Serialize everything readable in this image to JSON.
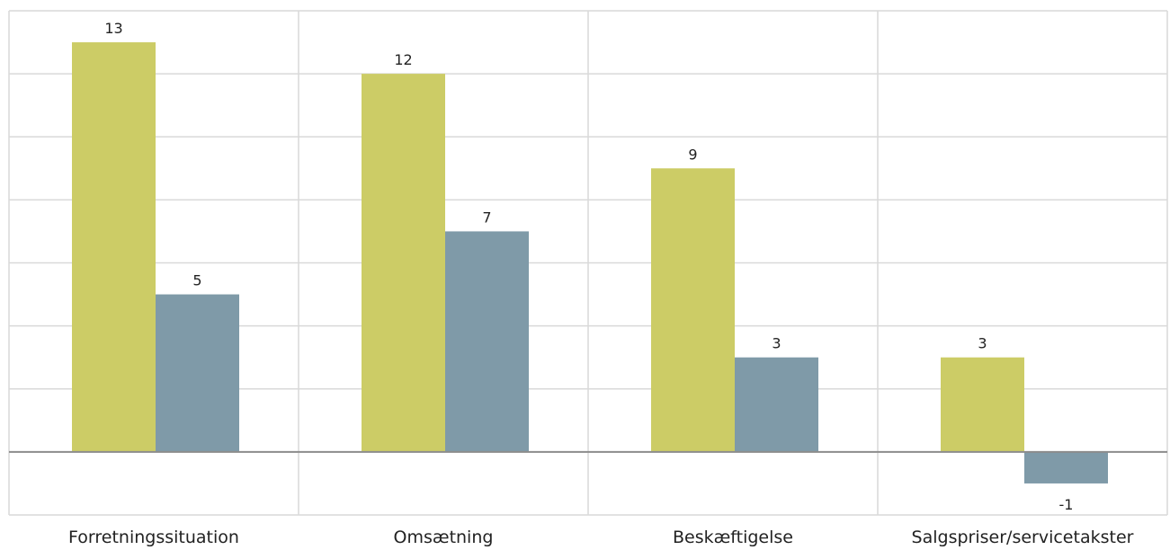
{
  "chart_data": {
    "type": "bar",
    "title": "",
    "xlabel": "",
    "ylabel": "",
    "categories": [
      "Forretningssituation",
      "Omsætning",
      "Beskæftigelse",
      "Salgspriser/servicetakster"
    ],
    "series": [
      {
        "values": [
          13,
          12,
          9,
          3
        ],
        "color": "#cccc66"
      },
      {
        "values": [
          5,
          7,
          3,
          -1
        ],
        "color": "#7f9aa8"
      }
    ],
    "ylim": [
      -2,
      14
    ],
    "grid": true,
    "legend": "none"
  }
}
